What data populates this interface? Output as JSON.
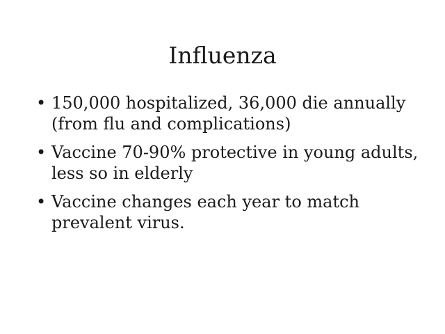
{
  "slide": {
    "title": "Influenza",
    "bullet_glyph": "•",
    "bullets": [
      "150,000 hospitalized, 36,000 die annually (from flu and complications)",
      "Vaccine 70-90% protective in young adults, less so in elderly",
      "Vaccine changes each year to match prevalent virus."
    ]
  }
}
